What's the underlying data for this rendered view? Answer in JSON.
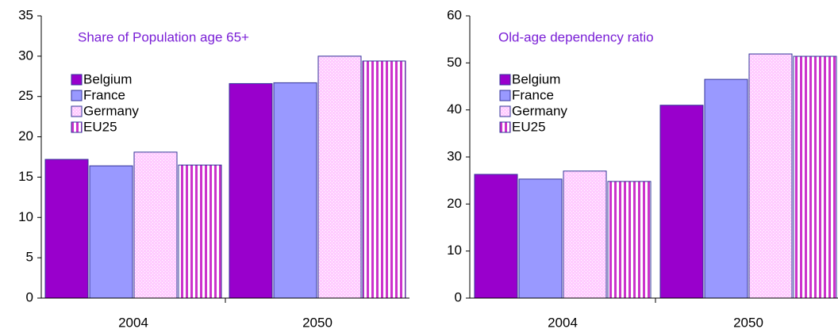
{
  "chart_data": [
    {
      "type": "bar",
      "title": "Share of Population age 65+",
      "categories": [
        "2004",
        "2050"
      ],
      "series": [
        {
          "name": "Belgium",
          "color": "#9900cc",
          "values": [
            17.2,
            26.6
          ]
        },
        {
          "name": "France",
          "color": "#9999ff",
          "values": [
            16.4,
            26.7
          ]
        },
        {
          "name": "Germany",
          "color": "#ffccff",
          "values": [
            18.1,
            30.0
          ]
        },
        {
          "name": "EU25",
          "color": "#cc33cc",
          "values": [
            16.5,
            29.4
          ]
        }
      ],
      "ylim": [
        0,
        35
      ],
      "yticks": [
        0,
        5,
        10,
        15,
        20,
        25,
        30,
        35
      ],
      "grid": false
    },
    {
      "type": "bar",
      "title": "Old-age dependency ratio",
      "categories": [
        "2004",
        "2050"
      ],
      "series": [
        {
          "name": "Belgium",
          "color": "#9900cc",
          "values": [
            26.3,
            41.0
          ]
        },
        {
          "name": "France",
          "color": "#9999ff",
          "values": [
            25.3,
            46.5
          ]
        },
        {
          "name": "Germany",
          "color": "#ffccff",
          "values": [
            27.0,
            51.9
          ]
        },
        {
          "name": "EU25",
          "color": "#cc33cc",
          "values": [
            24.8,
            51.4
          ]
        }
      ],
      "ylim": [
        0,
        60
      ],
      "yticks": [
        0,
        10,
        20,
        30,
        40,
        50,
        60
      ],
      "grid": false
    }
  ]
}
